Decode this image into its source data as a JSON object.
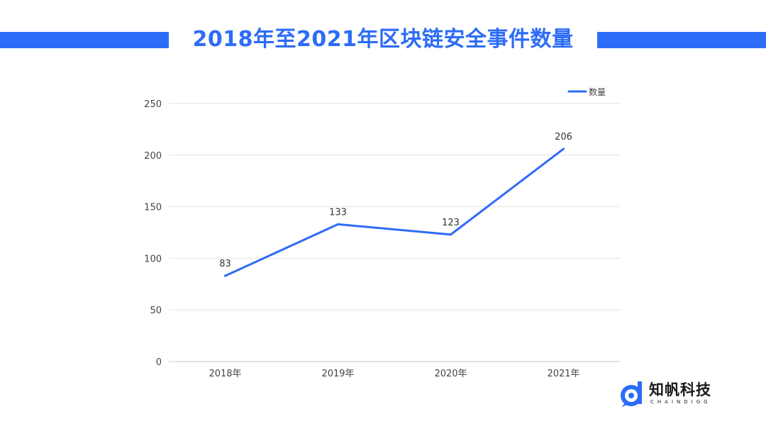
{
  "header": {
    "title": "2018年至2021年区块链安全事件数量",
    "accent_color": "#2d6cf6"
  },
  "chart_data": {
    "type": "line",
    "title": "2018年至2021年区块链安全事件数量",
    "categories": [
      "2018年",
      "2019年",
      "2020年",
      "2021年"
    ],
    "series": [
      {
        "name": "数量",
        "values": [
          83,
          133,
          123,
          206
        ],
        "color": "#2d6cf6"
      }
    ],
    "data_labels": [
      "83",
      "133",
      "123",
      "206"
    ],
    "ylim": [
      0,
      250
    ],
    "yticks": [
      0,
      50,
      100,
      150,
      200,
      250
    ],
    "ytick_labels": [
      "0",
      "50",
      "100",
      "150",
      "200",
      "250"
    ],
    "xlabel": "",
    "ylabel": "",
    "grid": true,
    "legend_position": "top-right"
  },
  "logo": {
    "name": "知帆科技",
    "subtitle": "CHAINDIGG",
    "icon": "chaindigg-logo-icon"
  }
}
